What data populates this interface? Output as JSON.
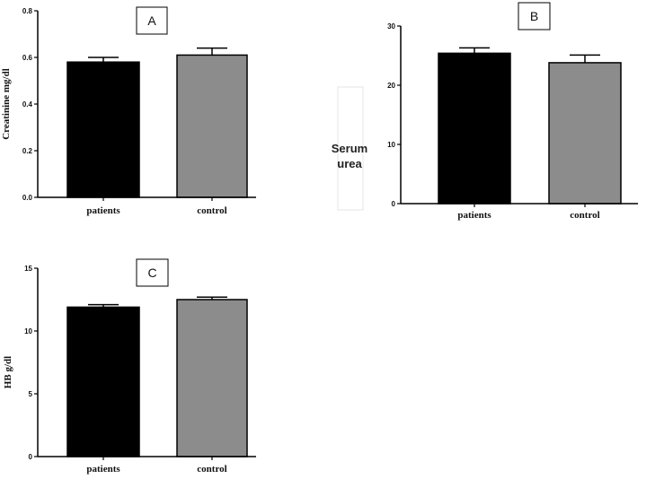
{
  "chart_data": [
    {
      "panel": "A",
      "type": "bar",
      "categories": [
        "patients",
        "control"
      ],
      "values": [
        0.58,
        0.61
      ],
      "errors": [
        0.02,
        0.03
      ],
      "ylabel": "Creatinine mg/dl",
      "ylim": [
        0,
        0.8
      ],
      "yticks": [
        "0.0",
        "0.2",
        "0.4",
        "0.6",
        "0.8"
      ],
      "colors": [
        "#000000",
        "#8c8c8c"
      ]
    },
    {
      "panel": "B",
      "type": "bar",
      "categories": [
        "patients",
        "control"
      ],
      "values": [
        25.4,
        23.8
      ],
      "errors": [
        0.9,
        1.3
      ],
      "ylabel": "Serum urea",
      "ylim": [
        0,
        30
      ],
      "yticks": [
        "0",
        "10",
        "20",
        "30"
      ],
      "colors": [
        "#000000",
        "#8c8c8c"
      ]
    },
    {
      "panel": "C",
      "type": "bar",
      "categories": [
        "patients",
        "control"
      ],
      "values": [
        11.9,
        12.5
      ],
      "errors": [
        0.2,
        0.2
      ],
      "ylabel": "HB g/dl",
      "ylim": [
        0,
        15
      ],
      "yticks": [
        "0",
        "5",
        "10",
        "15"
      ],
      "colors": [
        "#000000",
        "#8c8c8c"
      ]
    }
  ]
}
